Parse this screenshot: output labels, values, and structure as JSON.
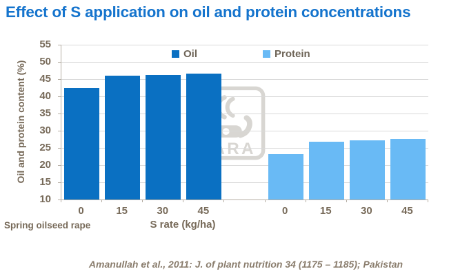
{
  "chart_data": {
    "type": "bar",
    "title": "Effect of S application on oil and protein concentrations",
    "ylabel": "Oil and protein content (%)",
    "xlabel": "S rate (kg/ha)",
    "ylim": [
      10,
      55
    ],
    "yticks": [
      55,
      50,
      45,
      40,
      35,
      30,
      25,
      20,
      15,
      10
    ],
    "categories": [
      "0",
      "15",
      "30",
      "45"
    ],
    "series": [
      {
        "name": "Oil",
        "color": "#0a70c2",
        "values": [
          42.5,
          46.0,
          46.3,
          46.6
        ]
      },
      {
        "name": "Protein",
        "color": "#69baf5",
        "values": [
          23.2,
          26.8,
          27.3,
          27.6
        ]
      }
    ],
    "grid": true,
    "legend_position": "top-inside"
  },
  "annotations": {
    "group_label": "Spring oilseed rape",
    "citation": "Amanullah et al., 2011: J. of plant nutrition 34 (1175 – 1185); Pakistan"
  },
  "watermark": {
    "label": "YARA"
  },
  "colors": {
    "title": "#1574cd",
    "axis_text": "#776a59",
    "legend_text": "#6e6457",
    "citation_text": "#8a7d6d",
    "gridline": "#d9d9d9",
    "axis_line": "#b5ada2",
    "watermark": "#d8d6d2"
  }
}
